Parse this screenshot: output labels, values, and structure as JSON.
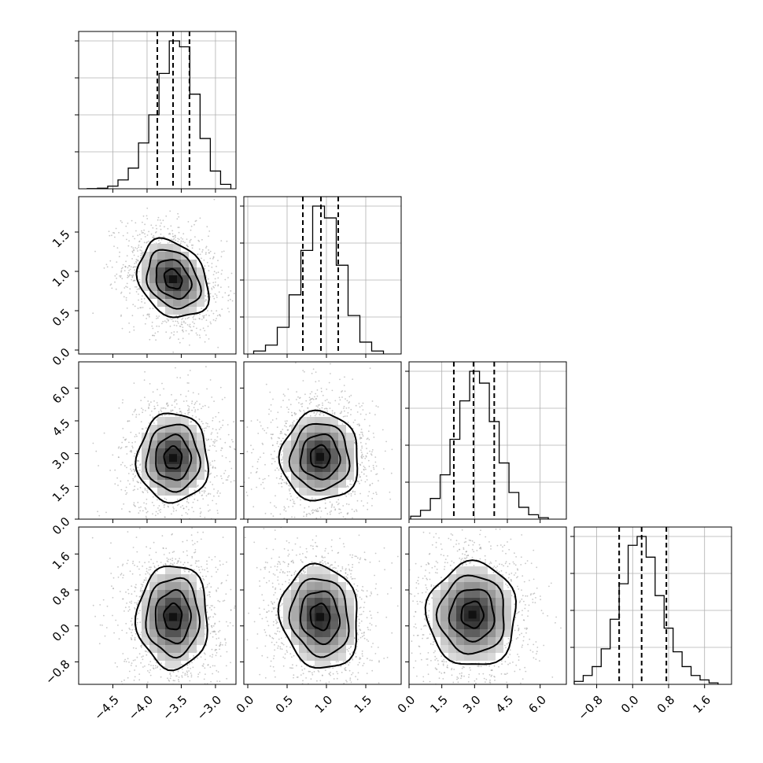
{
  "chart_data": {
    "type": "corner",
    "parameters": [
      {
        "index": 0,
        "range": [
          -5.0,
          -2.7
        ],
        "ticks": [
          -4.5,
          -4.0,
          -3.5,
          -3.0
        ],
        "tick_labels": [
          "−4.5",
          "−4.0",
          "−3.5",
          "−3.0"
        ],
        "quantiles": [
          -3.85,
          -3.62,
          -3.38
        ],
        "hist_bins_x": [
          -4.8,
          -4.65,
          -4.5,
          -4.35,
          -4.2,
          -4.05,
          -3.9,
          -3.75,
          -3.6,
          -3.45,
          -3.3,
          -3.15,
          -3.0,
          -2.85
        ],
        "hist_counts": [
          0.1,
          0.4,
          1.8,
          6,
          14,
          31,
          50,
          78,
          100,
          96,
          64,
          34,
          12,
          3
        ]
      },
      {
        "index": 1,
        "range": [
          -0.05,
          1.95
        ],
        "ticks": [
          0.0,
          0.5,
          1.0,
          1.5
        ],
        "tick_labels": [
          "0.0",
          "0.5",
          "1.0",
          "1.5"
        ],
        "quantiles": [
          0.7,
          0.93,
          1.15
        ],
        "hist_bins_x": [
          0.15,
          0.3,
          0.45,
          0.6,
          0.75,
          0.9,
          1.05,
          1.2,
          1.35,
          1.5,
          1.65
        ],
        "hist_counts": [
          2,
          6,
          18,
          40,
          70,
          100,
          92,
          60,
          26,
          8,
          2
        ]
      },
      {
        "index": 2,
        "range": [
          0.0,
          7.2
        ],
        "ticks": [
          0.0,
          1.5,
          3.0,
          4.5,
          6.0
        ],
        "tick_labels": [
          "0.0",
          "1.5",
          "3.0",
          "4.5",
          "6.0"
        ],
        "quantiles": [
          2.05,
          2.95,
          3.9
        ],
        "hist_bins_x": [
          0.3,
          0.75,
          1.2,
          1.65,
          2.1,
          2.55,
          3.0,
          3.45,
          3.9,
          4.35,
          4.8,
          5.25,
          5.7,
          6.15
        ],
        "hist_counts": [
          2,
          6,
          14,
          30,
          54,
          80,
          100,
          92,
          66,
          38,
          18,
          8,
          3,
          1
        ]
      },
      {
        "index": 3,
        "range": [
          -1.3,
          2.2
        ],
        "ticks": [
          -0.8,
          0.0,
          0.8,
          1.6
        ],
        "tick_labels": [
          "−0.8",
          "0.0",
          "0.8",
          "1.6"
        ],
        "quantiles": [
          -0.3,
          0.2,
          0.75
        ],
        "hist_bins_x": [
          -1.2,
          -1.0,
          -0.8,
          -0.6,
          -0.4,
          -0.2,
          0.0,
          0.2,
          0.4,
          0.6,
          0.8,
          1.0,
          1.2,
          1.4,
          1.6,
          1.8
        ],
        "hist_counts": [
          2,
          6,
          12,
          24,
          44,
          68,
          94,
          100,
          86,
          60,
          38,
          22,
          12,
          6,
          3,
          1
        ]
      }
    ],
    "correlations": [
      {
        "x": 0,
        "y": 1,
        "peak": [
          -3.62,
          0.9
        ],
        "rho": -0.25
      },
      {
        "x": 0,
        "y": 2,
        "peak": [
          -3.62,
          2.8
        ],
        "rho": 0.0
      },
      {
        "x": 1,
        "y": 2,
        "peak": [
          0.92,
          2.85
        ],
        "rho": 0.0
      },
      {
        "x": 0,
        "y": 3,
        "peak": [
          -3.62,
          0.2
        ],
        "rho": 0.0
      },
      {
        "x": 1,
        "y": 3,
        "peak": [
          0.92,
          0.2
        ],
        "rho": -0.1
      },
      {
        "x": 2,
        "y": 3,
        "peak": [
          2.9,
          0.25
        ],
        "rho": 0.0
      }
    ],
    "colors": {
      "line": "#000000",
      "grid": "#b0b0b0",
      "density_dark": "#222222",
      "density_light": "#f2f2f2",
      "points": "#9a9a9a"
    },
    "grid": true,
    "contour_levels_sigma": [
      0.5,
      1.0,
      1.5,
      2.0
    ]
  }
}
